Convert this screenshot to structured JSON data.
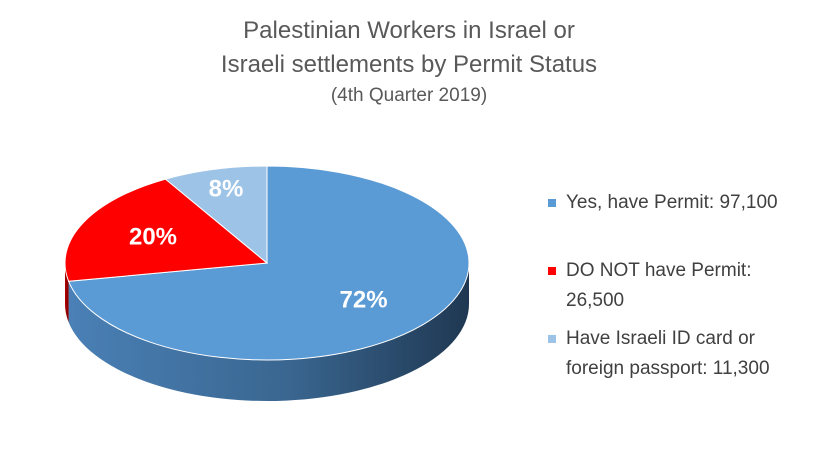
{
  "chart_data": {
    "type": "pie",
    "title": "Palestinian Workers in Israel or",
    "title_line2": "Israeli settlements by Permit Status",
    "subtitle": "(4th Quarter 2019)",
    "slices": [
      {
        "label": "Yes, have Permit: 97,100",
        "value": 97100,
        "percent_label": "72%",
        "color": "#5b9bd5"
      },
      {
        "label": "DO NOT have Permit: 26,500",
        "value": 26500,
        "percent_label": "20%",
        "color": "#ff0000"
      },
      {
        "label": "Have Israeli ID card or foreign passport: 11,300",
        "value": 11300,
        "percent_label": "8%",
        "color": "#9dc3e6"
      }
    ],
    "legend_position": "right",
    "style": "3d"
  }
}
